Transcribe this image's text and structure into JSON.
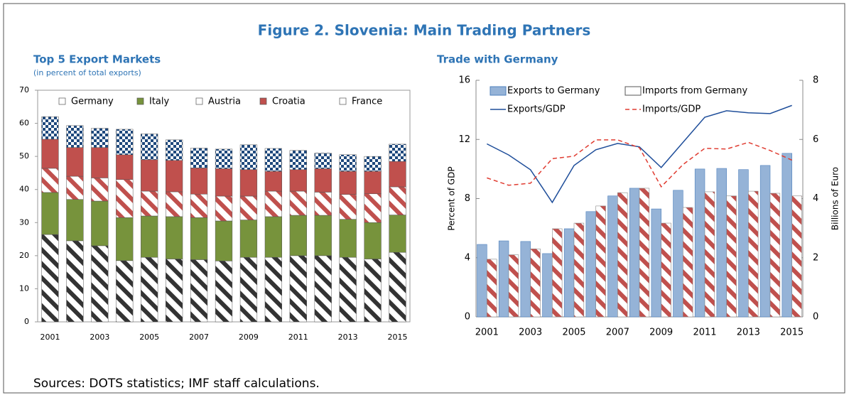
{
  "title": "Figure 2. Slovenia: Main Trading Partners",
  "source": "Sources: DOTS statistics; IMF staff calculations.",
  "chart_data": [
    {
      "type": "stacked_bar",
      "title": "Top 5 Export Markets",
      "subtitle": "(in percent of total exports)",
      "categories": [
        "2001",
        null,
        "2003",
        null,
        "2005",
        null,
        "2007",
        null,
        "2009",
        null,
        "2011",
        null,
        "2013",
        null,
        "2015"
      ],
      "ylim": [
        0,
        70
      ],
      "yticks": [
        0,
        10,
        20,
        30,
        40,
        50,
        60,
        70
      ],
      "series": [
        {
          "name": "Germany",
          "color": "#333333",
          "pattern": "stripes",
          "values": [
            26.4,
            24.5,
            23,
            18.5,
            19.5,
            19,
            18.8,
            18.4,
            19.5,
            19.5,
            20,
            20,
            19.5,
            19,
            21
          ]
        },
        {
          "name": "Italy",
          "color": "#77933c",
          "values": [
            12.7,
            12.5,
            13.5,
            13,
            12.5,
            12.8,
            12.7,
            12.1,
            11.3,
            12.3,
            12.2,
            12.2,
            11.5,
            11,
            11.3
          ]
        },
        {
          "name": "Austria",
          "color": "#c0504d",
          "pattern": "stripes",
          "values": [
            7.3,
            7,
            7,
            11.5,
            7.5,
            7.5,
            7.1,
            7.5,
            7.2,
            7.7,
            7.3,
            7,
            7.5,
            8.7,
            8.5
          ]
        },
        {
          "name": "Croatia",
          "color": "#c0504d",
          "values": [
            8.8,
            8.7,
            9.2,
            7.5,
            9.5,
            9.5,
            7.9,
            8.3,
            8,
            6,
            6.5,
            7.1,
            7,
            6.8,
            7.7
          ]
        },
        {
          "name": "France",
          "color": "#1f497d",
          "pattern": "checker",
          "values": [
            6.8,
            6.6,
            5.8,
            7.7,
            7.8,
            6.2,
            6,
            5.9,
            7.5,
            6.9,
            5.8,
            4.7,
            5,
            4.5,
            5.2
          ]
        }
      ]
    },
    {
      "type": "combo",
      "title": "Trade with Germany",
      "ylabel": "Percent of GDP",
      "y2label": "Billions of Euro",
      "categories": [
        "2001",
        null,
        "2003",
        null,
        "2005",
        null,
        "2007",
        null,
        "2009",
        null,
        "2011",
        null,
        "2013",
        null,
        "2015"
      ],
      "ylim": [
        0,
        16
      ],
      "yticks": [
        0,
        4,
        8,
        12,
        16
      ],
      "y2lim": [
        0,
        8
      ],
      "y2ticks": [
        0,
        2,
        4,
        6,
        8
      ],
      "series": [
        {
          "name": "Exports to Germany",
          "type": "bar",
          "axis": "y2",
          "color": "#95b3d7",
          "values": [
            2.45,
            2.57,
            2.55,
            2.14,
            2.98,
            3.56,
            4.09,
            4.35,
            3.65,
            4.28,
            5.0,
            5.02,
            4.98,
            5.12,
            5.53
          ]
        },
        {
          "name": "Imports from Germany",
          "type": "bar",
          "axis": "y2",
          "color": "#c0504d",
          "pattern": "stripes",
          "values": [
            1.95,
            2.1,
            2.3,
            2.98,
            3.17,
            3.75,
            4.2,
            4.35,
            3.17,
            3.7,
            4.23,
            4.09,
            4.25,
            4.18,
            4.09
          ]
        },
        {
          "name": "Exports/GDP",
          "type": "line",
          "color": "#1f4e9a",
          "values": [
            11.7,
            10.95,
            9.95,
            7.74,
            10.24,
            11.3,
            11.73,
            11.5,
            10.1,
            11.8,
            13.5,
            13.94,
            13.8,
            13.75,
            14.3
          ]
        },
        {
          "name": "Imports/GDP",
          "type": "line",
          "dashed": true,
          "color": "#e03c31",
          "values": [
            9.4,
            8.9,
            9.04,
            10.7,
            10.87,
            11.97,
            11.97,
            11.44,
            8.8,
            10.3,
            11.4,
            11.35,
            11.8,
            11.25,
            10.6
          ]
        }
      ]
    }
  ]
}
